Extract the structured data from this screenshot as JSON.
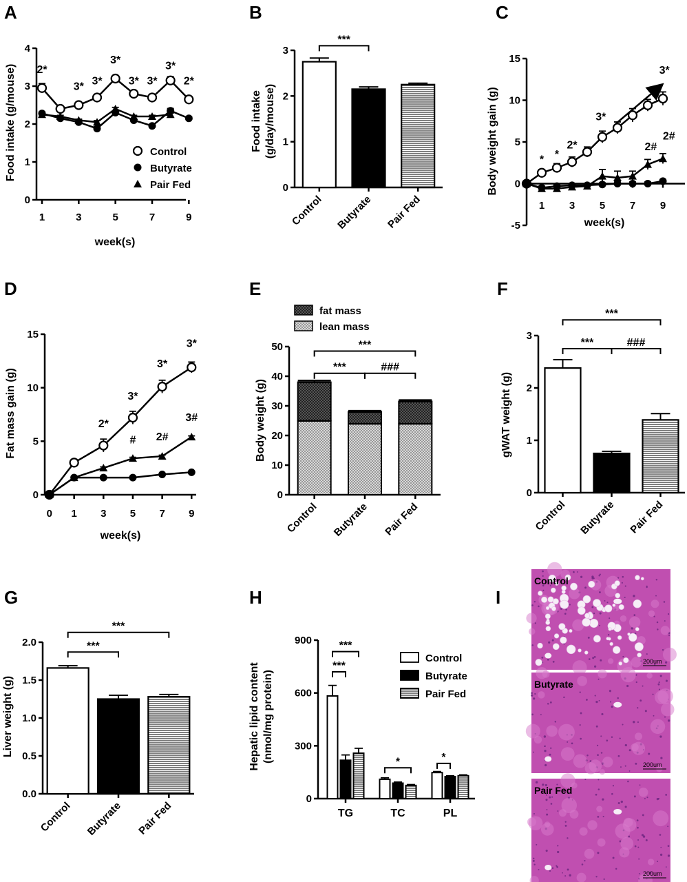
{
  "panels": {
    "A": {
      "label": "A",
      "chart_data": {
        "type": "line",
        "xlabel": "week(s)",
        "ylabel": "Food intake (g/mouse)",
        "xlim": [
          0.7,
          9.4
        ],
        "ylim": [
          0,
          4
        ],
        "xticks": [
          1,
          3,
          5,
          7,
          9
        ],
        "yticks": [
          0,
          1,
          2,
          3,
          4
        ],
        "legend_position": "lower-right",
        "series": [
          {
            "name": "Control",
            "marker": "open-circle",
            "x": [
              1,
              2,
              3,
              4,
              5,
              6,
              7,
              8,
              9
            ],
            "y": [
              2.95,
              2.4,
              2.5,
              2.7,
              3.2,
              2.8,
              2.7,
              3.15,
              2.65
            ],
            "err": [
              0.12,
              0.05,
              0.06,
              0.08,
              0.07,
              0.08,
              0.06,
              0.1,
              0.08
            ]
          },
          {
            "name": "Butyrate",
            "marker": "filled-circle",
            "x": [
              1,
              2,
              3,
              4,
              5,
              6,
              7,
              8,
              9
            ],
            "y": [
              2.28,
              2.15,
              2.05,
              1.88,
              2.3,
              2.1,
              1.95,
              2.35,
              2.15
            ],
            "err": [
              0.04,
              0.04,
              0.04,
              0.05,
              0.05,
              0.04,
              0.04,
              0.06,
              0.04
            ]
          },
          {
            "name": "Pair Fed",
            "marker": "filled-triangle",
            "x": [
              1,
              2,
              3,
              4,
              5,
              6,
              7,
              8
            ],
            "y": [
              2.25,
              2.2,
              2.1,
              2.05,
              2.4,
              2.2,
              2.2,
              2.25
            ],
            "err": [
              0.03,
              0.03,
              0.03,
              0.04,
              0.04,
              0.03,
              0.03,
              0.04
            ]
          }
        ],
        "annotations": [
          {
            "text": "2*",
            "x": 1,
            "y": 3.35
          },
          {
            "text": "3*",
            "x": 3,
            "y": 2.9
          },
          {
            "text": "3*",
            "x": 4,
            "y": 3.05
          },
          {
            "text": "3*",
            "x": 5,
            "y": 3.6
          },
          {
            "text": "3*",
            "x": 6,
            "y": 3.05
          },
          {
            "text": "3*",
            "x": 7,
            "y": 3.05
          },
          {
            "text": "3*",
            "x": 8,
            "y": 3.45
          },
          {
            "text": "2*",
            "x": 9,
            "y": 3.05
          }
        ]
      }
    },
    "B": {
      "label": "B",
      "chart_data": {
        "type": "bar",
        "ylabel_line1": "Food intake",
        "ylabel_line2": "(g/day/mouse)",
        "ylim": [
          0,
          3
        ],
        "yticks": [
          0,
          1,
          2,
          3
        ],
        "categories": [
          "Control",
          "Butyrate",
          "Pair Fed"
        ],
        "values": [
          2.75,
          2.15,
          2.25
        ],
        "err": [
          0.08,
          0.05,
          0.03
        ],
        "fills": [
          "open",
          "filled",
          "hstripe"
        ],
        "brackets": [
          {
            "from": 0,
            "to": 1,
            "text": "***",
            "y": 3.1
          }
        ]
      }
    },
    "C": {
      "label": "C",
      "chart_data": {
        "type": "line",
        "xlabel": "week(s)",
        "ylabel": "Body weight gain (g)",
        "xlim": [
          0,
          10
        ],
        "ylim": [
          -5,
          15
        ],
        "xticks": [
          1,
          3,
          5,
          7,
          9
        ],
        "yticks": [
          -5,
          0,
          5,
          10,
          15
        ],
        "series": [
          {
            "name": "Control",
            "marker": "open-circle",
            "x": [
              0,
              1,
              2,
              3,
              4,
              5,
              6,
              7,
              8,
              9
            ],
            "y": [
              0,
              1.3,
              1.9,
              2.6,
              3.8,
              5.6,
              6.7,
              8.2,
              9.4,
              10.2
            ],
            "err": [
              0,
              0.4,
              0.5,
              0.6,
              0.6,
              0.7,
              0.7,
              0.8,
              0.7,
              0.8
            ]
          },
          {
            "name": "Butyrate",
            "marker": "filled-circle",
            "x": [
              0,
              1,
              2,
              3,
              4,
              5,
              6,
              7,
              8,
              9
            ],
            "y": [
              0,
              -0.5,
              -0.3,
              -0.2,
              -0.2,
              -0.1,
              0,
              0,
              0,
              0.3
            ],
            "err": [
              0,
              0.2,
              0.2,
              0.2,
              0.2,
              0.2,
              0.2,
              0.2,
              0.2,
              0.2
            ]
          },
          {
            "name": "Pair Fed",
            "marker": "filled-triangle",
            "x": [
              0,
              1,
              2,
              3,
              4,
              5,
              6,
              7,
              8,
              9
            ],
            "y": [
              0,
              -0.6,
              -0.6,
              -0.4,
              -0.3,
              0.9,
              0.7,
              0.9,
              2.3,
              3.0
            ],
            "err": [
              0,
              0.2,
              0.2,
              0.2,
              0.3,
              0.8,
              0.8,
              0.6,
              0.6,
              0.6
            ]
          }
        ],
        "annotations": [
          {
            "text": "*",
            "x": 1,
            "y": 2.5
          },
          {
            "text": "*",
            "x": 2,
            "y": 3.1
          },
          {
            "text": "2*",
            "x": 3,
            "y": 4.2
          },
          {
            "text": "3*",
            "x": 4.9,
            "y": 7.6
          },
          {
            "text": "3*",
            "x": 9.1,
            "y": 13.2
          },
          {
            "text": "2#",
            "x": 8.2,
            "y": 4.0
          },
          {
            "text": "2#",
            "x": 9.4,
            "y": 5.3
          }
        ],
        "arrow": {
          "x1": 5.9,
          "y1": 7.2,
          "x2": 8.9,
          "y2": 11.8
        }
      }
    },
    "D": {
      "label": "D",
      "chart_data": {
        "type": "line",
        "xlabel": "week(s)",
        "ylabel": "Fat mass gain (g)",
        "xlim": [
          -0.3,
          9.5
        ],
        "ylim": [
          0,
          15
        ],
        "xticks_pos": [
          0,
          1.6,
          3.5,
          5.4,
          7.3,
          9.2
        ],
        "xticks_labels": [
          "0",
          "1",
          "3",
          "5",
          "7",
          "9"
        ],
        "yticks": [
          0,
          5,
          10,
          15
        ],
        "series": [
          {
            "name": "Control",
            "marker": "open-circle",
            "x": [
              0,
              1.6,
              3.5,
              5.4,
              7.3,
              9.2
            ],
            "y": [
              0,
              3.0,
              4.6,
              7.2,
              10.1,
              11.9
            ],
            "err": [
              0,
              0.3,
              0.6,
              0.6,
              0.6,
              0.5
            ]
          },
          {
            "name": "Butyrate",
            "marker": "filled-circle",
            "x": [
              0,
              1.6,
              3.5,
              5.4,
              7.3,
              9.2
            ],
            "y": [
              0,
              1.6,
              1.6,
              1.6,
              1.9,
              2.1
            ],
            "err": [
              0,
              0.1,
              0.1,
              0.1,
              0.1,
              0.1
            ]
          },
          {
            "name": "Pair Fed",
            "marker": "filled-triangle",
            "x": [
              0,
              1.6,
              3.5,
              5.4,
              7.3,
              9.2
            ],
            "y": [
              0,
              1.6,
              2.5,
              3.4,
              3.6,
              5.4
            ],
            "err": [
              0,
              0.1,
              0.1,
              0.1,
              0.1,
              0.1
            ]
          }
        ],
        "annotations": [
          {
            "text": "2*",
            "x": 3.5,
            "y": 6.3
          },
          {
            "text": "3*",
            "x": 5.4,
            "y": 8.9
          },
          {
            "text": "3*",
            "x": 7.3,
            "y": 11.9
          },
          {
            "text": "3*",
            "x": 9.2,
            "y": 13.8
          },
          {
            "text": "#",
            "x": 5.4,
            "y": 4.8
          },
          {
            "text": "2#",
            "x": 7.3,
            "y": 5.1
          },
          {
            "text": "3#",
            "x": 9.2,
            "y": 6.9
          }
        ]
      }
    },
    "E": {
      "label": "E",
      "chart_data": {
        "type": "stacked-bar",
        "ylabel": "Body weight (g)",
        "ylim": [
          0,
          50
        ],
        "yticks": [
          0,
          10,
          20,
          30,
          40,
          50
        ],
        "categories": [
          "Control",
          "Butyrate",
          "Pair Fed"
        ],
        "series": [
          {
            "name": "lean mass",
            "values": [
              25,
              24,
              24
            ],
            "err": [
              0.4,
              0.4,
              0.4
            ]
          },
          {
            "name": "fat mass",
            "values": [
              13,
              4,
              7.5
            ],
            "err": [
              0.6,
              0.4,
              0.5
            ]
          }
        ],
        "legend_position": "top-left",
        "brackets": [
          {
            "from": 0,
            "to": 1,
            "text": "***",
            "y": 41
          },
          {
            "from": 1,
            "to": 2,
            "text": "###",
            "y": 41
          },
          {
            "from": 0,
            "to": 2,
            "text": "***",
            "y": 48.5
          }
        ]
      }
    },
    "F": {
      "label": "F",
      "chart_data": {
        "type": "bar",
        "ylabel": "gWAT weight (g)",
        "ylim": [
          0,
          3
        ],
        "yticks": [
          0,
          1,
          2,
          3
        ],
        "categories": [
          "Control",
          "Butyrate",
          "Pair Fed"
        ],
        "values": [
          2.38,
          0.75,
          1.39
        ],
        "err": [
          0.16,
          0.04,
          0.12
        ],
        "fills": [
          "open",
          "filled",
          "hstripe"
        ],
        "brackets": [
          {
            "from": 0,
            "to": 1,
            "text": "***",
            "y": 2.75
          },
          {
            "from": 1,
            "to": 2,
            "text": "###",
            "y": 2.75
          },
          {
            "from": 0,
            "to": 2,
            "text": "***",
            "y": 3.3
          }
        ]
      }
    },
    "G": {
      "label": "G",
      "chart_data": {
        "type": "bar",
        "ylabel": "Liver weight (g)",
        "ylim": [
          0,
          2.0
        ],
        "yticks": [
          0.0,
          0.5,
          1.0,
          1.5,
          2.0
        ],
        "ytick_labels": [
          "0.0",
          "0.5",
          "1.0",
          "1.5",
          "2.0"
        ],
        "categories": [
          "Control",
          "Butyrate",
          "Pair Fed"
        ],
        "values": [
          1.66,
          1.25,
          1.28
        ],
        "err": [
          0.03,
          0.05,
          0.03
        ],
        "fills": [
          "open",
          "filled",
          "hstripe"
        ],
        "brackets": [
          {
            "from": 0,
            "to": 1,
            "text": "***",
            "y": 1.87
          },
          {
            "from": 0,
            "to": 2,
            "text": "***",
            "y": 2.13
          }
        ]
      }
    },
    "H": {
      "label": "H",
      "chart_data": {
        "type": "grouped-bar",
        "ylabel_line1": "Hepatic lipid content",
        "ylabel_line2": "(nmol/mg protein)",
        "ylim": [
          0,
          900
        ],
        "yticks": [
          0,
          300,
          600,
          900
        ],
        "categories": [
          "TG",
          "TC",
          "PL"
        ],
        "legend_position": "top-right",
        "series": [
          {
            "name": "Control",
            "fill": "open",
            "values": [
              583,
              110,
              148
            ],
            "err": [
              60,
              8,
              6
            ]
          },
          {
            "name": "Butyrate",
            "fill": "filled",
            "values": [
              218,
              88,
              125
            ],
            "err": [
              30,
              6,
              5
            ]
          },
          {
            "name": "Pair Fed",
            "fill": "hstripe",
            "values": [
              258,
              75,
              130
            ],
            "err": [
              28,
              5,
              5
            ]
          }
        ],
        "brackets": [
          {
            "group": 0,
            "from": 0,
            "to": 1,
            "text": "***",
            "y": 720
          },
          {
            "group": 0,
            "from": 0,
            "to": 2,
            "text": "***",
            "y": 835
          },
          {
            "group": 1,
            "from": 0,
            "to": 2,
            "text": "*",
            "y": 175
          },
          {
            "group": 2,
            "from": 0,
            "to": 1,
            "text": "*",
            "y": 200
          }
        ]
      }
    },
    "I": {
      "label": "I",
      "images": [
        {
          "label": "Control",
          "scale": "200um",
          "fat": true
        },
        {
          "label": "Butyrate",
          "scale": "200um",
          "fat": false
        },
        {
          "label": "Pair Fed",
          "scale": "200um",
          "fat": false
        }
      ],
      "colors": {
        "tissue": "#c04fb0",
        "tissue_light": "#d77bcb",
        "nuclei": "#6a2480",
        "vacuole": "#f6eef7"
      }
    }
  },
  "colors": {
    "ink": "#000000",
    "paper": "#ffffff"
  }
}
